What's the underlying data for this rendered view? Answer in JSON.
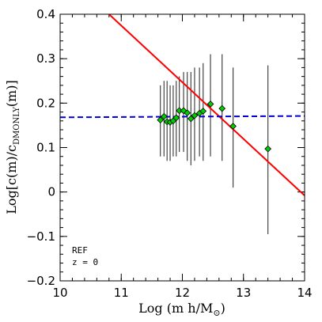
{
  "chart_data": {
    "type": "scatter",
    "title": "",
    "xlabel": "Log (m h/M",
    "xlabel_sub": "⊙",
    "xlabel_close": ")",
    "ylabel_prefix": "Log[c(m)/c",
    "ylabel_sub": "DMONLY",
    "ylabel_suffix": "(m)]",
    "xlim": [
      10,
      14
    ],
    "ylim": [
      -0.2,
      0.4
    ],
    "xticks": [
      10,
      11,
      12,
      13,
      14
    ],
    "xtick_labels": [
      "10",
      "11",
      "12",
      "13",
      "14"
    ],
    "yticks": [
      -0.2,
      -0.1,
      0,
      0.1,
      0.2,
      0.3,
      0.4
    ],
    "ytick_labels": [
      "−0.2",
      "−0.1",
      "0",
      "0.1",
      "0.2",
      "0.3",
      "0.4"
    ],
    "x_minor_step": 0.2,
    "y_minor_step": 0.02,
    "grid": false,
    "annotations": [
      "REF",
      "z = 0"
    ],
    "points": [
      {
        "x": 11.64,
        "y": 0.162,
        "ylo": 0.08,
        "yhi": 0.24
      },
      {
        "x": 11.7,
        "y": 0.17,
        "ylo": 0.08,
        "yhi": 0.25
      },
      {
        "x": 11.75,
        "y": 0.158,
        "ylo": 0.07,
        "yhi": 0.25
      },
      {
        "x": 11.8,
        "y": 0.157,
        "ylo": 0.07,
        "yhi": 0.24
      },
      {
        "x": 11.85,
        "y": 0.16,
        "ylo": 0.08,
        "yhi": 0.24
      },
      {
        "x": 11.9,
        "y": 0.167,
        "ylo": 0.08,
        "yhi": 0.25
      },
      {
        "x": 11.95,
        "y": 0.183,
        "ylo": 0.09,
        "yhi": 0.26
      },
      {
        "x": 12.02,
        "y": 0.183,
        "ylo": 0.09,
        "yhi": 0.27
      },
      {
        "x": 12.08,
        "y": 0.178,
        "ylo": 0.07,
        "yhi": 0.27
      },
      {
        "x": 12.14,
        "y": 0.165,
        "ylo": 0.06,
        "yhi": 0.27
      },
      {
        "x": 12.2,
        "y": 0.172,
        "ylo": 0.07,
        "yhi": 0.28
      },
      {
        "x": 12.28,
        "y": 0.177,
        "ylo": 0.08,
        "yhi": 0.28
      },
      {
        "x": 12.34,
        "y": 0.182,
        "ylo": 0.07,
        "yhi": 0.29
      },
      {
        "x": 12.46,
        "y": 0.198,
        "ylo": 0.08,
        "yhi": 0.31
      },
      {
        "x": 12.65,
        "y": 0.188,
        "ylo": 0.07,
        "yhi": 0.31
      },
      {
        "x": 12.83,
        "y": 0.148,
        "ylo": 0.01,
        "yhi": 0.28
      },
      {
        "x": 13.4,
        "y": 0.097,
        "ylo": -0.095,
        "yhi": 0.285
      }
    ],
    "marker_color": "#00cc00",
    "errorbar_color": "#444444",
    "series": [
      {
        "kind": "line",
        "x": [
          10.8,
          14.0
        ],
        "y": [
          0.4,
          -0.008
        ],
        "color": "#ff0000",
        "dash": false
      },
      {
        "kind": "line",
        "x": [
          10.0,
          14.0
        ],
        "y": [
          0.168,
          0.171
        ],
        "color": "#0000dd",
        "dash": true
      }
    ]
  }
}
